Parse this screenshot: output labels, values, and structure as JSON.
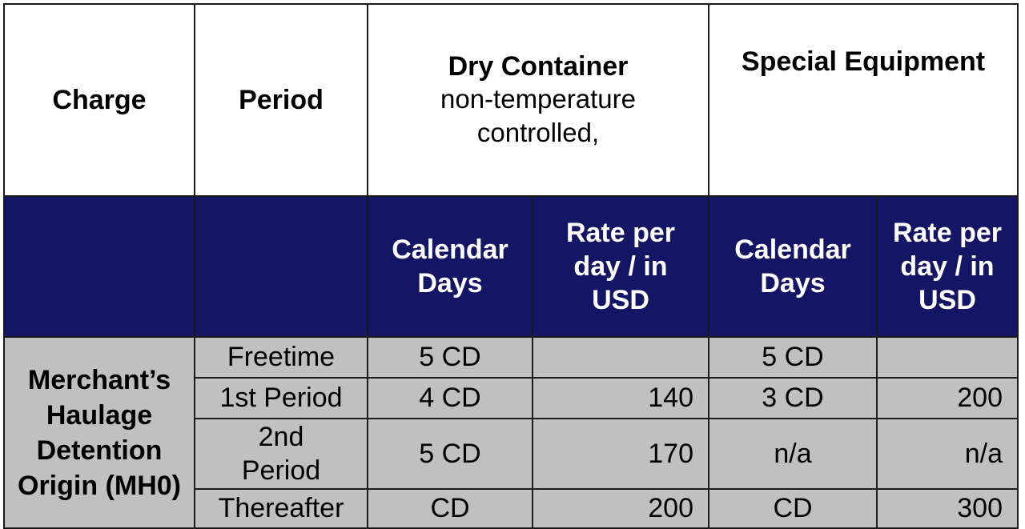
{
  "header": {
    "charge": "Charge",
    "period": "Period",
    "dry_container_title": "Dry Container",
    "dry_container_sub": "non-temperature controlled,",
    "special_equipment": "Special Equipment"
  },
  "subheader": {
    "dry_days": "Calendar Days",
    "dry_rate": "Rate per day / in USD",
    "special_days": "Calendar Days",
    "special_rate": "Rate per day / in USD"
  },
  "charge_name": "Merchant’s Haulage Detention Origin (MH0)",
  "rows": [
    {
      "period": "Freetime",
      "dry_days": "5 CD",
      "dry_rate": "",
      "special_days": "5 CD",
      "special_rate": ""
    },
    {
      "period": "1st Period",
      "dry_days": "4 CD",
      "dry_rate": "140",
      "special_days": "3 CD",
      "special_rate": "200"
    },
    {
      "period": "2nd Period",
      "dry_days": "5 CD",
      "dry_rate": "170",
      "special_days": "n/a",
      "special_rate": "n/a"
    },
    {
      "period": "Thereafter",
      "dry_days": "CD",
      "dry_rate": "200",
      "special_days": "CD",
      "special_rate": "300"
    }
  ],
  "colors": {
    "header_bg": "#ffffff",
    "subheader_bg": "#151565",
    "body_bg": "#c0c0c0",
    "border": "#1a1a1a"
  }
}
